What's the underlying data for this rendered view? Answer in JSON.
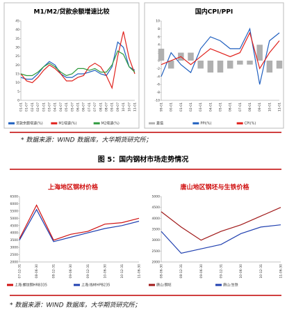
{
  "chart_data": [
    {
      "type": "line",
      "title": "M1/M2/贷款余额增速比较",
      "title_color": "#000000",
      "categories": [
        "01-01",
        "01-07",
        "02-01",
        "02-07",
        "03-01",
        "03-07",
        "04-01",
        "04-07",
        "05-01",
        "05-07",
        "06-01",
        "06-07",
        "07-01",
        "07-07",
        "08-01",
        "08-07",
        "09-01",
        "09-07",
        "10-01",
        "10-07",
        "11-01"
      ],
      "ylim": [
        0,
        45
      ],
      "yticks": [
        0,
        5,
        10,
        15,
        20,
        25,
        30,
        35,
        40,
        45
      ],
      "series": [
        {
          "name": "贷款余额增速(%)",
          "color": "#1f5fbf",
          "values": [
            13,
            12,
            12,
            15,
            19,
            22,
            20,
            15,
            13,
            13,
            15,
            15,
            16,
            17,
            15,
            14,
            19,
            33,
            30,
            19,
            17
          ]
        },
        {
          "name": "M1增速(%)",
          "color": "#e0201b",
          "values": [
            15,
            11,
            10,
            13,
            17,
            20,
            18,
            15,
            11,
            11,
            13,
            14,
            19,
            21,
            19,
            14,
            7,
            25,
            39,
            24,
            15
          ]
        },
        {
          "name": "M2增速(%)",
          "color": "#2e9a3c",
          "values": [
            15,
            14,
            14,
            16,
            19,
            21,
            19,
            16,
            14,
            15,
            18,
            18,
            17,
            18,
            16,
            16,
            20,
            28,
            26,
            19,
            16
          ]
        }
      ]
    },
    {
      "type": "line",
      "title": "国内CPI/PPI",
      "title_color": "#000000",
      "categories": [
        "99-01",
        "00-01",
        "01-01",
        "02-01",
        "03-01",
        "04-01",
        "05-01",
        "06-01",
        "07-01",
        "08-01",
        "09-01",
        "10-01",
        "11-01"
      ],
      "ylim": [
        -10,
        10
      ],
      "yticks": [
        -10,
        -8,
        -6,
        -4,
        -2,
        0,
        2,
        4,
        6,
        8,
        10
      ],
      "series": [
        {
          "name": "差值",
          "color": "#b0b0b0",
          "type": "bar",
          "values": [
            3,
            -2,
            2,
            2,
            -2,
            -3,
            -3,
            -2,
            -1,
            -1,
            4,
            -3,
            -2
          ]
        },
        {
          "name": "PPI(%)",
          "color": "#1f5fbf",
          "values": [
            -4,
            2,
            -1,
            -3,
            3,
            6,
            5,
            3,
            3,
            8,
            -6,
            5,
            7
          ]
        },
        {
          "name": "CPI(%)",
          "color": "#e0201b",
          "values": [
            -1,
            0,
            1,
            -1,
            1,
            3,
            2,
            1,
            2,
            7,
            -2,
            2,
            5
          ]
        }
      ]
    },
    {
      "type": "line",
      "title": "上海地区钢材价格",
      "title_color": "#d01010",
      "categories": [
        "07-12-31",
        "08-06-30",
        "08-12-31",
        "09-06-30",
        "09-12-31",
        "10-06-30",
        "10-12-31",
        "11-06-30"
      ],
      "ylim": [
        2000,
        6500
      ],
      "yticks": [
        2000,
        2500,
        3000,
        3500,
        4000,
        4500,
        5000,
        5500,
        6000,
        6500
      ],
      "series": [
        {
          "name": "上海:螺纹钢HRB335",
          "color": "#d01010",
          "values": [
            3600,
            5900,
            3500,
            3900,
            4100,
            4600,
            4700,
            5000
          ]
        },
        {
          "name": "上海:线材HPB235",
          "color": "#2040b0",
          "values": [
            3500,
            5600,
            3400,
            3700,
            4000,
            4300,
            4500,
            4800
          ]
        }
      ]
    },
    {
      "type": "line",
      "title": "唐山地区钢坯与生铁价格",
      "title_color": "#d01010",
      "categories": [
        "08-06-30",
        "08-12-31",
        "09-06-30",
        "09-12-31",
        "10-06-30",
        "10-12-31",
        "11-06-30"
      ],
      "ylim": [
        2000,
        5000
      ],
      "yticks": [
        2000,
        2500,
        3000,
        3500,
        4000,
        4500,
        5000
      ],
      "series": [
        {
          "name": "唐山:钢坯",
          "color": "#a01818",
          "values": [
            4300,
            3600,
            3000,
            3400,
            3700,
            4100,
            4500
          ]
        },
        {
          "name": "唐山:生铁",
          "color": "#2040b0",
          "values": [
            3400,
            2400,
            2600,
            2800,
            3300,
            3600,
            3700
          ]
        }
      ]
    }
  ],
  "source_note_1": "* 数据来源：WIND 数据库，大华期货研究所；",
  "figure_caption": "图 5：国内钢材市场走势情况",
  "source_note_2": "* 数据来源：WIND 数据库，大华期货研究所；"
}
